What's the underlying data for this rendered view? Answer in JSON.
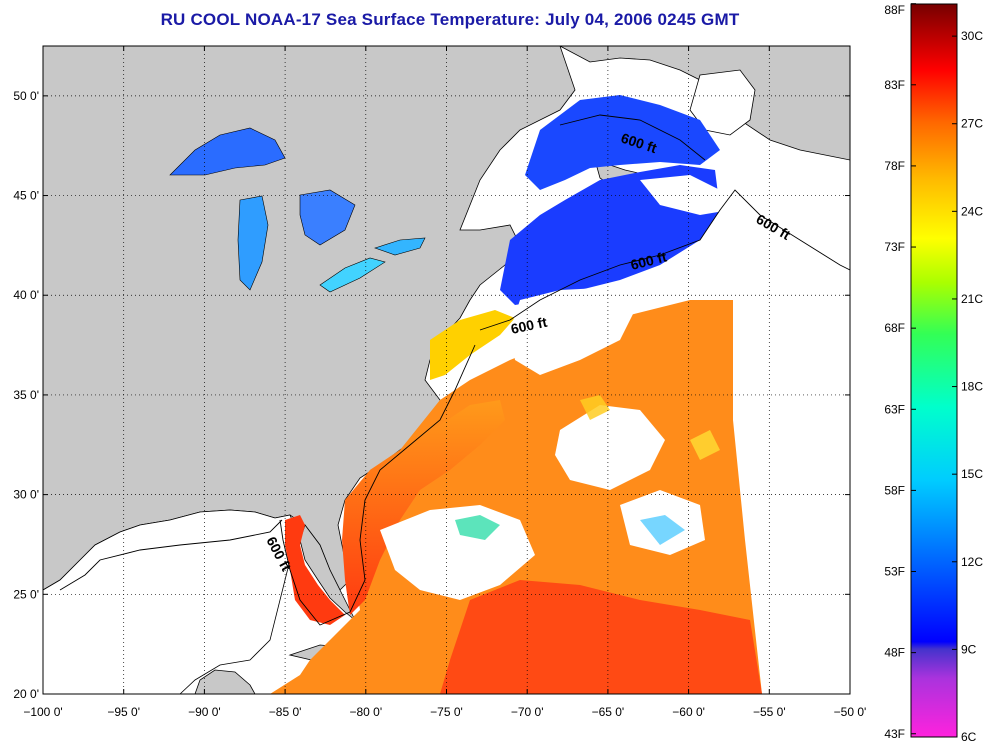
{
  "title": "RU COOL  NOAA-17  Sea Surface Temperature:  July 04, 2006 0245 GMT",
  "map": {
    "lon_range": [
      -100,
      -50
    ],
    "lat_range": [
      20,
      52.5
    ],
    "x_ticks": [
      "−100 0'",
      "−95 0'",
      "−90 0'",
      "−85 0'",
      "−80 0'",
      "−75 0'",
      "−70 0'",
      "−65 0'",
      "−60 0'",
      "−55 0'",
      "−50 0'"
    ],
    "y_ticks": [
      "20 0'",
      "25 0'",
      "30 0'",
      "35 0'",
      "40 0'",
      "45 0'",
      "50 0'"
    ],
    "contour_labels": [
      "600 ft",
      "600 ft",
      "600 ft",
      "600 ft",
      "600 ft"
    ],
    "grid": "dotted",
    "colors": {
      "land": "#c8c8c8",
      "cloud": "#ffffff",
      "coast": "#000000"
    }
  },
  "colorbar": {
    "fahrenheit_labels": [
      "88F",
      "83F",
      "78F",
      "73F",
      "68F",
      "63F",
      "58F",
      "53F",
      "48F",
      "43F"
    ],
    "celsius_labels": [
      "30C",
      "27C",
      "24C",
      "21C",
      "18C",
      "15C",
      "12C",
      "9C",
      "6C"
    ],
    "range_c": [
      6,
      31.1
    ]
  }
}
